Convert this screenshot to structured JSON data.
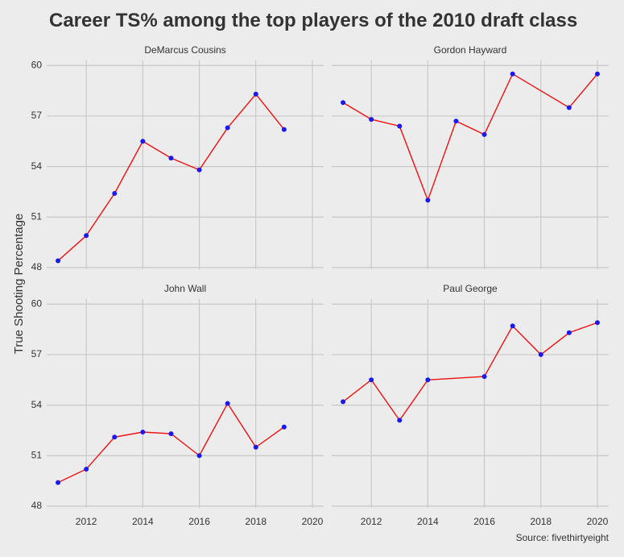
{
  "chart_data": {
    "type": "line",
    "title": "Career TS% among the top players of the 2010 draft class",
    "ylabel": "True Shooting Percentage",
    "xlabel": "",
    "caption": "Source: fivethirtyeight",
    "x_ticks": [
      2012,
      2014,
      2016,
      2018,
      2020
    ],
    "y_ticks": [
      48,
      51,
      54,
      57,
      60
    ],
    "ylim": [
      47.9,
      60.3
    ],
    "xlim": [
      2010.6,
      2020.4
    ],
    "grid": true,
    "line_color": "#ee1111",
    "point_color": "#1a1aee",
    "panels": [
      {
        "name": "DeMarcus Cousins",
        "x": [
          2011,
          2012,
          2013,
          2014,
          2015,
          2016,
          2017,
          2018,
          2019
        ],
        "y": [
          48.4,
          49.9,
          52.4,
          55.5,
          54.5,
          53.8,
          56.3,
          58.3,
          56.2
        ]
      },
      {
        "name": "Gordon Hayward",
        "x": [
          2011,
          2012,
          2013,
          2014,
          2015,
          2016,
          2017,
          2019,
          2020
        ],
        "y": [
          57.8,
          56.8,
          56.4,
          52.0,
          56.7,
          55.9,
          59.5,
          57.5,
          59.5
        ]
      },
      {
        "name": "John Wall",
        "x": [
          2011,
          2012,
          2013,
          2014,
          2015,
          2016,
          2017,
          2018,
          2019
        ],
        "y": [
          49.4,
          50.2,
          52.1,
          52.4,
          52.3,
          51.0,
          54.1,
          51.5,
          52.7
        ]
      },
      {
        "name": "Paul George",
        "x": [
          2011,
          2012,
          2013,
          2014,
          2016,
          2017,
          2018,
          2019,
          2020
        ],
        "y": [
          54.2,
          55.5,
          53.1,
          55.5,
          55.7,
          58.7,
          57.0,
          58.3,
          58.9
        ]
      }
    ]
  }
}
